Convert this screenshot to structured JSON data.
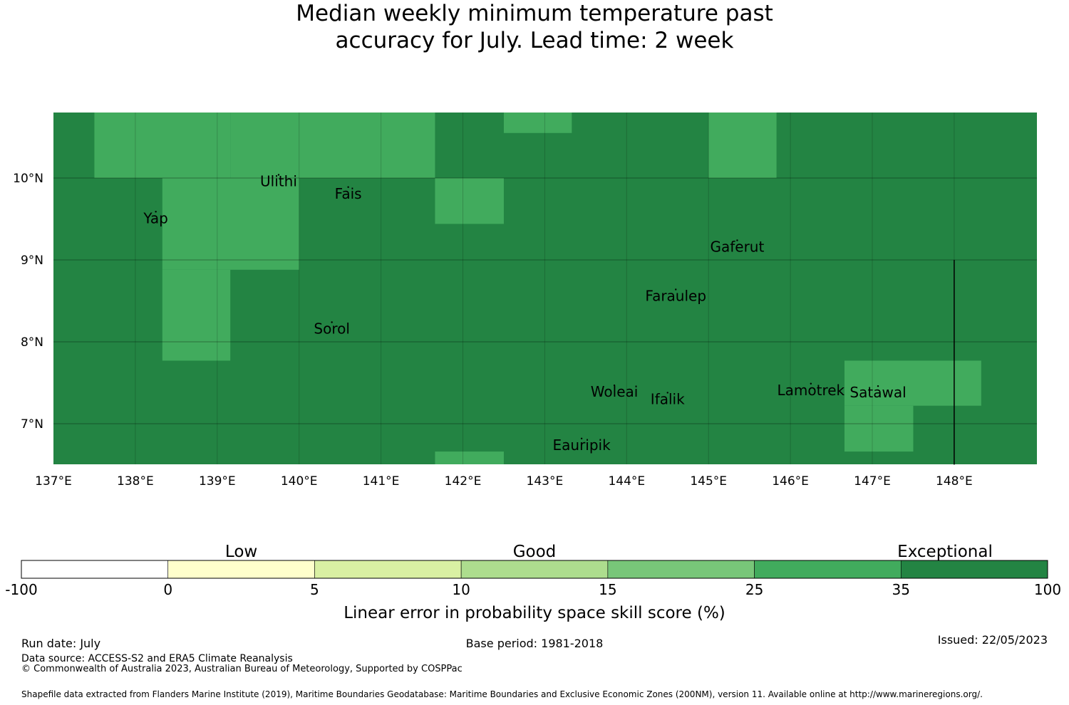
{
  "title": {
    "line1": "Median weekly minimum temperature past",
    "line2": "accuracy for July. Lead time: 2 week"
  },
  "map": {
    "lon_range": [
      137,
      149
    ],
    "lat_range": [
      6.5,
      10.8
    ],
    "lon_ticks": [
      137,
      138,
      139,
      140,
      141,
      142,
      143,
      144,
      145,
      146,
      147,
      148
    ],
    "lon_tick_labels": [
      "137°E",
      "138°E",
      "139°E",
      "140°E",
      "141°E",
      "142°E",
      "143°E",
      "144°E",
      "145°E",
      "146°E",
      "147°E",
      "148°E"
    ],
    "lat_ticks": [
      10,
      9,
      8,
      7
    ],
    "lat_tick_labels": [
      "10°N",
      "9°N",
      "8°N",
      "7°N"
    ],
    "background_color": "#238443",
    "light_cells_color": "#41ab5d",
    "light_cells": [
      {
        "lon": [
          137.5,
          139.16
        ],
        "lat": [
          10.0,
          10.8
        ]
      },
      {
        "lon": [
          139.16,
          141.66
        ],
        "lat": [
          10.0,
          10.8
        ]
      },
      {
        "lon": [
          142.5,
          143.33
        ],
        "lat": [
          10.55,
          10.8
        ]
      },
      {
        "lon": [
          145.0,
          145.83
        ],
        "lat": [
          10.0,
          10.8
        ]
      },
      {
        "lon": [
          138.33,
          140.0
        ],
        "lat": [
          8.88,
          10.0
        ]
      },
      {
        "lon": [
          138.33,
          139.16
        ],
        "lat": [
          7.77,
          8.88
        ]
      },
      {
        "lon": [
          141.66,
          142.5
        ],
        "lat": [
          9.44,
          10.0
        ]
      },
      {
        "lon": [
          141.66,
          142.5
        ],
        "lat": [
          6.5,
          6.66
        ]
      },
      {
        "lon": [
          146.66,
          148.33
        ],
        "lat": [
          7.22,
          7.77
        ]
      },
      {
        "lon": [
          146.66,
          147.5
        ],
        "lat": [
          6.66,
          7.22
        ]
      }
    ],
    "places": [
      {
        "name": "Ulithi",
        "lon": 139.75,
        "lat": 9.9
      },
      {
        "name": "Fais",
        "lon": 140.6,
        "lat": 9.75
      },
      {
        "name": "Yap",
        "lon": 138.25,
        "lat": 9.45
      },
      {
        "name": "Gaferut",
        "lon": 145.35,
        "lat": 9.1
      },
      {
        "name": "Faraulep",
        "lon": 144.6,
        "lat": 8.5
      },
      {
        "name": "Sorol",
        "lon": 140.4,
        "lat": 8.1
      },
      {
        "name": "Woleai",
        "lon": 143.85,
        "lat": 7.33
      },
      {
        "name": "Ifalik",
        "lon": 144.5,
        "lat": 7.24
      },
      {
        "name": "Lamotrek",
        "lon": 146.25,
        "lat": 7.35
      },
      {
        "name": "Satawal",
        "lon": 147.07,
        "lat": 7.32
      },
      {
        "name": "Eauripik",
        "lon": 143.45,
        "lat": 6.68
      }
    ],
    "boundary_line": {
      "lon": 148.0,
      "lat": [
        6.5,
        9.0
      ]
    }
  },
  "colorbar": {
    "categories": [
      {
        "label": "Low",
        "center_value": "2.5"
      },
      {
        "label": "Good",
        "center_value": "12.5"
      },
      {
        "label": "Exceptional",
        "center_value": "35-100"
      }
    ],
    "bins": [
      {
        "from": "-100",
        "to": "0",
        "color": "#ffffff"
      },
      {
        "from": "0",
        "to": "5",
        "color": "#ffffcc"
      },
      {
        "from": "5",
        "to": "10",
        "color": "#d9f0a3"
      },
      {
        "from": "10",
        "to": "15",
        "color": "#addd8e"
      },
      {
        "from": "15",
        "to": "25",
        "color": "#78c679"
      },
      {
        "from": "25",
        "to": "35",
        "color": "#41ab5d"
      },
      {
        "from": "35",
        "to": "100",
        "color": "#238443"
      }
    ],
    "tick_labels": [
      "-100",
      "0",
      "5",
      "10",
      "15",
      "25",
      "35",
      "100"
    ],
    "label": "Linear error in probability space skill score (%)"
  },
  "footer": {
    "run_date": "Run date: July",
    "base_period": "Base period: 1981-2018",
    "issued": "Issued: 22/05/2023",
    "data_source": "Data source: ACCESS-S2 and ERA5 Climate Reanalysis",
    "copyright": "© Commonwealth of Australia 2023, Australian Bureau of Meteorology, Supported by COSPPac",
    "shapefile": "Shapefile data extracted from Flanders Marine Institute (2019), Maritime Boundaries Geodatabase: Maritime Boundaries and Exclusive Economic Zones (200NM), version 11. Available online at http://www.marineregions.org/."
  }
}
